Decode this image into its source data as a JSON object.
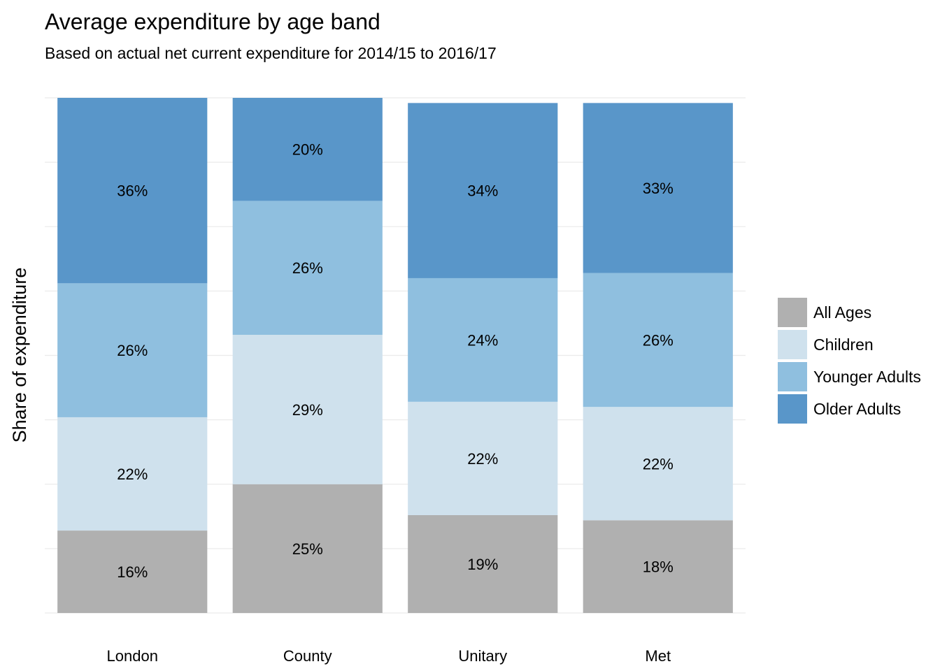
{
  "title": "Average expenditure by age band",
  "subtitle": "Based on actual net current expenditure for 2014/15 to 2016/17",
  "chart_data": {
    "type": "bar",
    "stacked": true,
    "normalized": true,
    "title": "Average expenditure by age band",
    "subtitle": "Based on actual net current expenditure for 2014/15 to 2016/17",
    "xlabel": "",
    "ylabel": "Share of expenditure",
    "ylim": [
      0,
      1
    ],
    "grid": true,
    "y_tick_labels_shown": false,
    "categories": [
      "London",
      "County",
      "Unitary",
      "Met"
    ],
    "series": [
      {
        "name": "All Ages",
        "color": "#b0b0b0",
        "values": [
          0.16,
          0.25,
          0.19,
          0.18
        ]
      },
      {
        "name": "Children",
        "color": "#cfe1ed",
        "values": [
          0.22,
          0.29,
          0.22,
          0.22
        ]
      },
      {
        "name": "Younger Adults",
        "color": "#8fbfdf",
        "values": [
          0.26,
          0.26,
          0.24,
          0.26
        ]
      },
      {
        "name": "Older Adults",
        "color": "#5996c9",
        "values": [
          0.36,
          0.2,
          0.34,
          0.33
        ]
      }
    ],
    "data_labels": [
      [
        "16%",
        "22%",
        "26%",
        "36%"
      ],
      [
        "25%",
        "29%",
        "26%",
        "20%"
      ],
      [
        "19%",
        "22%",
        "24%",
        "34%"
      ],
      [
        "18%",
        "22%",
        "26%",
        "33%"
      ]
    ],
    "legend": {
      "position": "right",
      "entries": [
        "All Ages",
        "Children",
        "Younger Adults",
        "Older Adults"
      ]
    }
  }
}
